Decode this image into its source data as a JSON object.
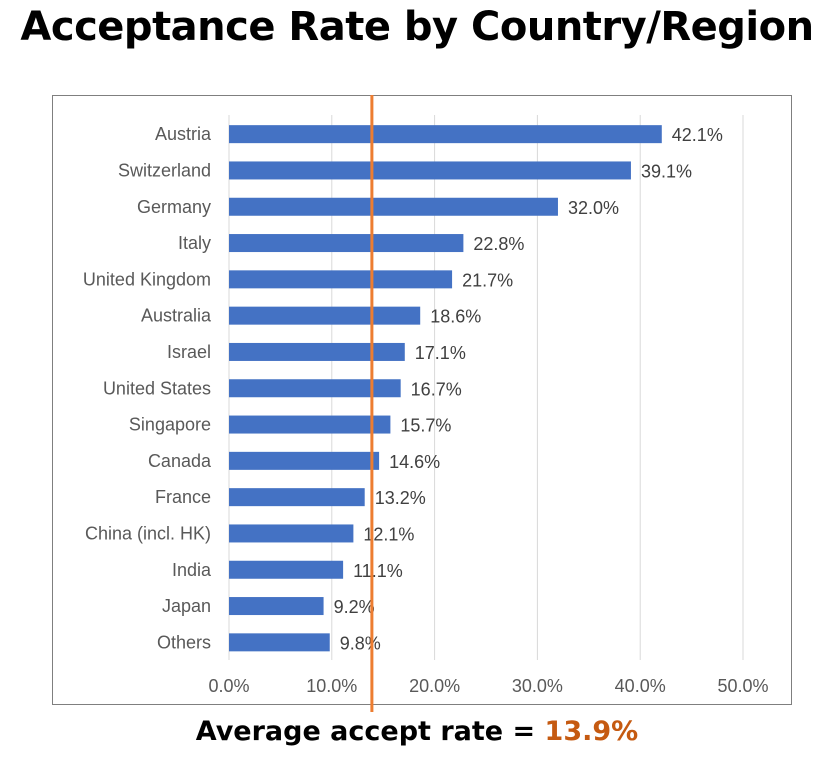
{
  "title": "Acceptance Rate by Country/Region",
  "footer": {
    "label": "Average accept rate = ",
    "value": "13.9%"
  },
  "colors": {
    "bar": "#4472c4",
    "average_line": "#ed7d31",
    "footer_value": "#c55a11",
    "grid": "#d9d9d9"
  },
  "chart_data": {
    "type": "bar",
    "orientation": "horizontal",
    "categories": [
      "Austria",
      "Switzerland",
      "Germany",
      "Italy",
      "United Kingdom",
      "Australia",
      "Israel",
      "United States",
      "Singapore",
      "Canada",
      "France",
      "China (incl. HK)",
      "India",
      "Japan",
      "Others"
    ],
    "values": [
      42.1,
      39.1,
      32.0,
      22.8,
      21.7,
      18.6,
      17.1,
      16.7,
      15.7,
      14.6,
      13.2,
      12.1,
      11.1,
      9.2,
      9.8
    ],
    "data_labels": [
      "42.1%",
      "39.1%",
      "32.0%",
      "22.8%",
      "21.7%",
      "18.6%",
      "17.1%",
      "16.7%",
      "15.7%",
      "14.6%",
      "13.2%",
      "12.1%",
      "11.1%",
      "9.2%",
      "9.8%"
    ],
    "xlim": [
      0,
      50
    ],
    "x_ticks": [
      0,
      10,
      20,
      30,
      40,
      50
    ],
    "x_tick_labels": [
      "0.0%",
      "10.0%",
      "20.0%",
      "30.0%",
      "40.0%",
      "50.0%"
    ],
    "reference_line": {
      "value": 13.9
    },
    "grid": true,
    "legend": "none"
  }
}
